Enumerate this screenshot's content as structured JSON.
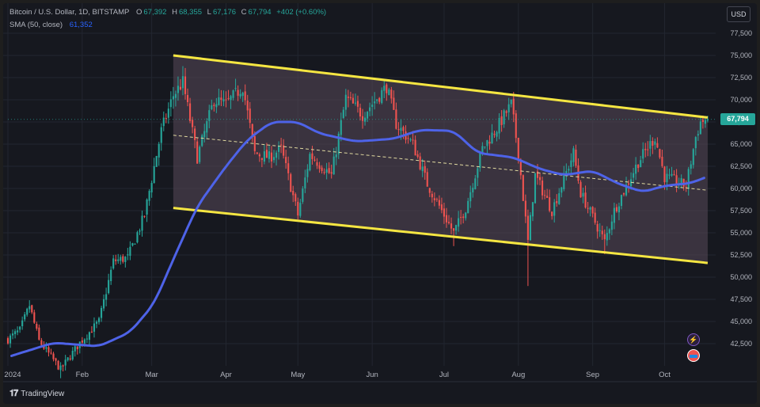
{
  "legend": {
    "symbol": "Bitcoin / U.S. Dollar, 1D, BITSTAMP",
    "o_label": "O",
    "o": "67,392",
    "h_label": "H",
    "h": "68,355",
    "l_label": "L",
    "l": "67,176",
    "c_label": "C",
    "c": "67,794",
    "change": "+402 (+0.60%)",
    "sma_label": "SMA (50, close)",
    "sma_value": "61,352"
  },
  "currency_button": "USD",
  "last_price_tag": "67,794",
  "watermark": "TradingView",
  "colors": {
    "background": "#16181f",
    "up": "#26a69a",
    "down": "#ef5350",
    "sma": "#4e63e8",
    "channel": "#f5e642",
    "channel_fill": "#5a4a5a",
    "midline": "#e0d9a0",
    "grid": "#222630",
    "axis_text": "#b2b5be"
  },
  "chart_data": {
    "type": "candlestick",
    "title": "Bitcoin / U.S. Dollar, 1D, BITSTAMP",
    "xlabel": "",
    "ylabel": "",
    "y_range": [
      40000,
      80000
    ],
    "x_range": [
      "2024-01-01",
      "2024-10-21"
    ],
    "grid": true,
    "y_ticks": [
      42500,
      45000,
      47500,
      50000,
      52500,
      55000,
      57500,
      60000,
      62500,
      65000,
      67500,
      70000,
      72500,
      75000,
      77500
    ],
    "y_tick_labels": [
      "42,500",
      "45,000",
      "47,500",
      "50,000",
      "52,500",
      "55,000",
      "57,500",
      "60,000",
      "62,500",
      "65,000",
      "67,500",
      "70,000",
      "72,500",
      "75,000",
      "77,500"
    ],
    "x_ticks": [
      "2024-01-01",
      "2024-02-01",
      "2024-03-01",
      "2024-04-01",
      "2024-05-01",
      "2024-06-01",
      "2024-07-01",
      "2024-08-01",
      "2024-09-01",
      "2024-10-01"
    ],
    "x_tick_labels": [
      "2024",
      "Feb",
      "Mar",
      "Apr",
      "May",
      "Jun",
      "Jul",
      "Aug",
      "Sep",
      "Oct"
    ],
    "close_anchors": [
      [
        "2024-01-01",
        43000
      ],
      [
        "2024-01-06",
        44000
      ],
      [
        "2024-01-10",
        46800
      ],
      [
        "2024-01-14",
        42800
      ],
      [
        "2024-01-23",
        39600
      ],
      [
        "2024-01-31",
        42600
      ],
      [
        "2024-02-08",
        45000
      ],
      [
        "2024-02-14",
        51800
      ],
      [
        "2024-02-20",
        52200
      ],
      [
        "2024-02-27",
        57000
      ],
      [
        "2024-03-05",
        66500
      ],
      [
        "2024-03-10",
        70500
      ],
      [
        "2024-03-14",
        72000
      ],
      [
        "2024-03-20",
        63500
      ],
      [
        "2024-03-27",
        70000
      ],
      [
        "2024-04-01",
        69500
      ],
      [
        "2024-04-08",
        71500
      ],
      [
        "2024-04-13",
        64000
      ],
      [
        "2024-04-19",
        63500
      ],
      [
        "2024-04-24",
        64500
      ],
      [
        "2024-05-01",
        57000
      ],
      [
        "2024-05-06",
        63800
      ],
      [
        "2024-05-15",
        61500
      ],
      [
        "2024-05-21",
        70200
      ],
      [
        "2024-05-28",
        68300
      ],
      [
        "2024-06-04",
        70500
      ],
      [
        "2024-06-07",
        71500
      ],
      [
        "2024-06-11",
        67300
      ],
      [
        "2024-06-18",
        65000
      ],
      [
        "2024-06-24",
        60500
      ],
      [
        "2024-07-05",
        55000
      ],
      [
        "2024-07-10",
        57800
      ],
      [
        "2024-07-17",
        64500
      ],
      [
        "2024-07-23",
        66800
      ],
      [
        "2024-07-29",
        69500
      ],
      [
        "2024-08-01",
        64000
      ],
      [
        "2024-08-05",
        54000
      ],
      [
        "2024-08-08",
        61500
      ],
      [
        "2024-08-15",
        57500
      ],
      [
        "2024-08-24",
        64000
      ],
      [
        "2024-08-27",
        59500
      ],
      [
        "2024-09-06",
        54000
      ],
      [
        "2024-09-10",
        57500
      ],
      [
        "2024-09-20",
        63000
      ],
      [
        "2024-09-27",
        65800
      ],
      [
        "2024-10-01",
        61300
      ],
      [
        "2024-10-10",
        60300
      ],
      [
        "2024-10-14",
        65800
      ],
      [
        "2024-10-16",
        67500
      ],
      [
        "2024-10-19",
        67794
      ]
    ],
    "low_spikes": [
      [
        "2024-01-23",
        38600
      ],
      [
        "2024-05-01",
        56500
      ],
      [
        "2024-07-05",
        53500
      ],
      [
        "2024-08-05",
        49000
      ],
      [
        "2024-09-06",
        52600
      ]
    ],
    "high_spikes": [
      [
        "2024-03-14",
        73800
      ],
      [
        "2024-06-07",
        71900
      ],
      [
        "2024-07-29",
        70000
      ]
    ],
    "sma_50_anchors": [
      [
        "2024-01-01",
        41000
      ],
      [
        "2024-01-20",
        42600
      ],
      [
        "2024-02-08",
        42200
      ],
      [
        "2024-02-21",
        43800
      ],
      [
        "2024-03-02",
        47000
      ],
      [
        "2024-03-10",
        52000
      ],
      [
        "2024-03-20",
        58000
      ],
      [
        "2024-04-01",
        62500
      ],
      [
        "2024-04-10",
        65500
      ],
      [
        "2024-04-20",
        67500
      ],
      [
        "2024-05-01",
        67500
      ],
      [
        "2024-05-10",
        66200
      ],
      [
        "2024-05-25",
        65300
      ],
      [
        "2024-06-10",
        65600
      ],
      [
        "2024-06-21",
        66600
      ],
      [
        "2024-07-05",
        66500
      ],
      [
        "2024-07-15",
        64000
      ],
      [
        "2024-07-30",
        63500
      ],
      [
        "2024-08-10",
        62200
      ],
      [
        "2024-08-20",
        61500
      ],
      [
        "2024-09-01",
        62000
      ],
      [
        "2024-09-12",
        60500
      ],
      [
        "2024-09-22",
        59600
      ],
      [
        "2024-10-01",
        60300
      ],
      [
        "2024-10-12",
        60600
      ],
      [
        "2024-10-19",
        61352
      ]
    ],
    "channel_upper": [
      [
        "2024-03-10",
        75000
      ],
      [
        "2024-10-19",
        68000
      ]
    ],
    "channel_lower": [
      [
        "2024-03-10",
        57800
      ],
      [
        "2024-10-19",
        51600
      ]
    ],
    "channel_midline": [
      [
        "2024-03-10",
        66000
      ],
      [
        "2024-10-19",
        59800
      ]
    ],
    "last_price": 67794
  }
}
